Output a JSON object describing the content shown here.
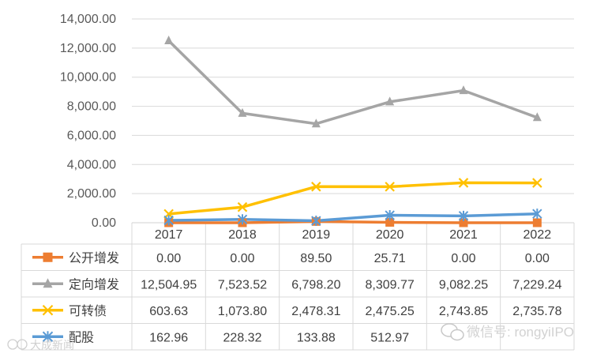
{
  "chart_data": {
    "type": "line",
    "title": "",
    "xlabel": "",
    "ylabel": "",
    "ylim": [
      0,
      14000
    ],
    "yticks": [
      0,
      2000,
      4000,
      6000,
      8000,
      10000,
      12000,
      14000
    ],
    "ytick_labels": [
      "0.00",
      "2,000.00",
      "4,000.00",
      "6,000.00",
      "8,000.00",
      "10,000.00",
      "12,000.00",
      "14,000.00"
    ],
    "grid": true,
    "legend": "data-table-below",
    "categories": [
      "2017",
      "2018",
      "2019",
      "2020",
      "2021",
      "2022"
    ],
    "series": [
      {
        "name": "公开增发",
        "color": "#ED7D31",
        "marker": "square",
        "values": [
          0.0,
          0.0,
          89.5,
          25.71,
          0.0,
          0.0
        ],
        "labels": [
          "0.00",
          "0.00",
          "89.50",
          "25.71",
          "0.00",
          "0.00"
        ]
      },
      {
        "name": "定向增发",
        "color": "#A5A5A5",
        "marker": "triangle",
        "values": [
          12504.95,
          7523.52,
          6798.2,
          8309.77,
          9082.25,
          7229.24
        ],
        "labels": [
          "12,504.95",
          "7,523.52",
          "6,798.20",
          "8,309.77",
          "9,082.25",
          "7,229.24"
        ]
      },
      {
        "name": "可转债",
        "color": "#FFC000",
        "marker": "x",
        "values": [
          603.63,
          1073.8,
          2478.31,
          2475.25,
          2743.85,
          2735.78
        ],
        "labels": [
          "603.63",
          "1,073.80",
          "2,478.31",
          "2,475.25",
          "2,743.85",
          "2,735.78"
        ]
      },
      {
        "name": "配股",
        "color": "#5B9BD5",
        "marker": "star",
        "values": [
          162.96,
          228.32,
          133.88,
          512.97,
          469.35,
          615.26
        ],
        "labels": [
          "162.96",
          "228.32",
          "133.88",
          "512.97",
          "",
          ""
        ]
      }
    ],
    "annotations": [
      "微信号: rongyiIPO",
      "大成新闻"
    ]
  }
}
